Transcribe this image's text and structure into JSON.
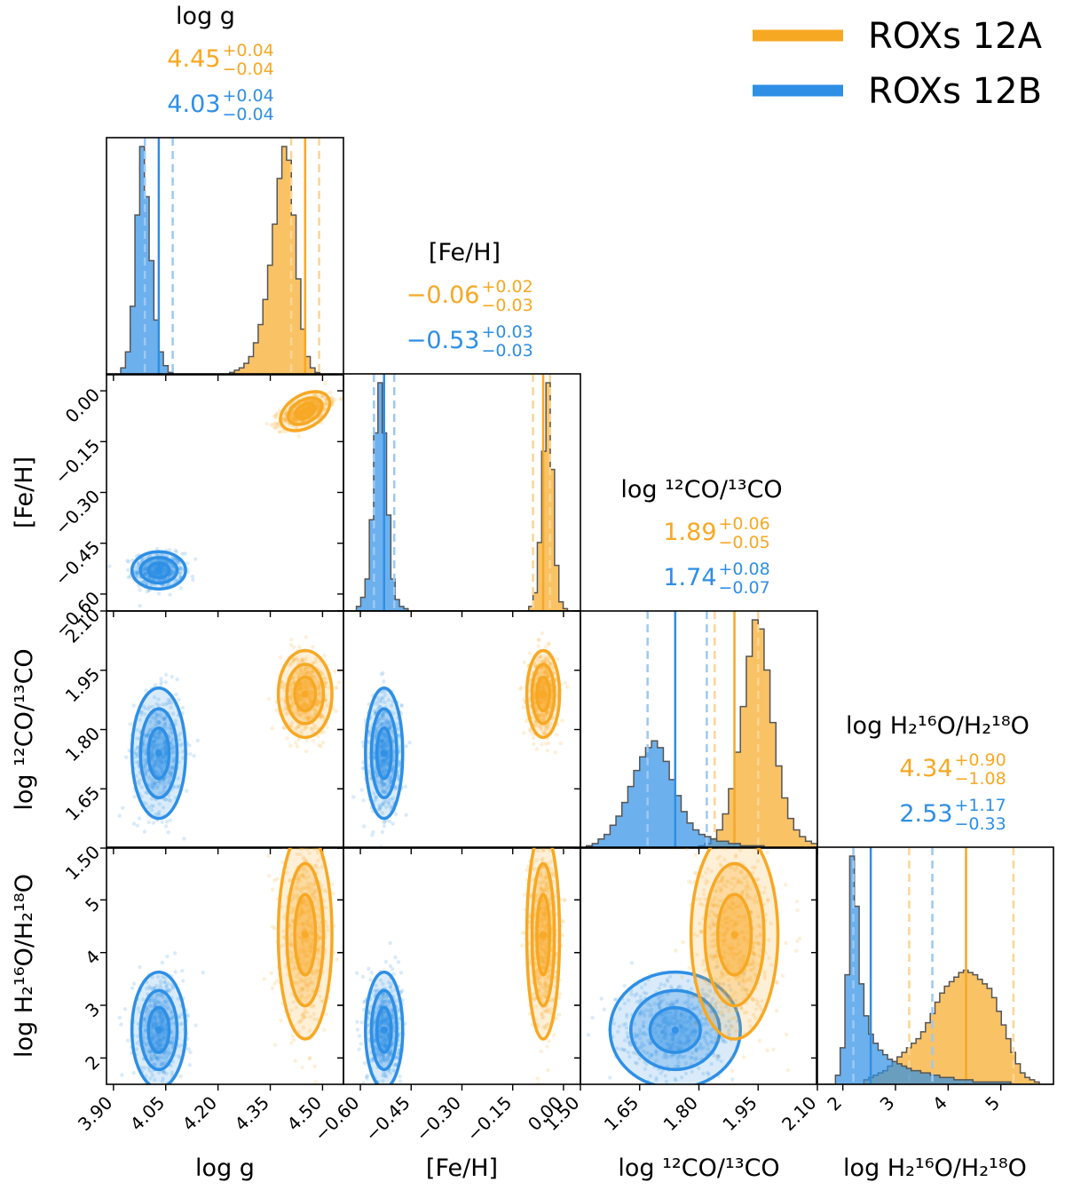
{
  "chart_data": {
    "type": "corner",
    "legend": {
      "position": "top-right",
      "entries": [
        {
          "label": "ROXs 12A",
          "color": "#f7a823"
        },
        {
          "label": "ROXs 12B",
          "color": "#2e8fe5"
        }
      ]
    },
    "colors": {
      "A": "#f7a823",
      "B": "#2e8fe5",
      "A_light": "#fbd595",
      "B_light": "#9cc9f3",
      "edge": "#555555"
    },
    "parameters": [
      {
        "key": "logg",
        "label": "log g",
        "range": [
          3.88,
          4.56
        ],
        "ticks": [
          3.9,
          4.05,
          4.2,
          4.35,
          4.5
        ],
        "tick_labels": [
          "3.90",
          "4.05",
          "4.20",
          "4.35",
          "4.50"
        ],
        "title": "log g",
        "A": {
          "median": "4.45",
          "plus": "+0.04",
          "minus": "−0.04",
          "value": 4.45,
          "lo": 4.41,
          "hi": 4.49,
          "sd": 0.035
        },
        "B": {
          "median": "4.03",
          "plus": "+0.04",
          "minus": "−0.04",
          "value": 4.03,
          "lo": 3.99,
          "hi": 4.07,
          "sd": 0.035
        }
      },
      {
        "key": "feh",
        "label": "[Fe/H]",
        "range": [
          -0.65,
          0.05
        ],
        "ticks": [
          -0.6,
          -0.45,
          -0.3,
          -0.15,
          0.0
        ],
        "tick_labels": [
          "−0.60",
          "−0.45",
          "−0.30",
          "−0.15",
          "0.00"
        ],
        "title": "[Fe/H]",
        "A": {
          "median": "−0.06",
          "plus": "+0.02",
          "minus": "−0.03",
          "value": -0.06,
          "lo": -0.09,
          "hi": -0.04,
          "sd": 0.022
        },
        "B": {
          "median": "−0.53",
          "plus": "+0.03",
          "minus": "−0.03",
          "value": -0.53,
          "lo": -0.56,
          "hi": -0.5,
          "sd": 0.025
        }
      },
      {
        "key": "co",
        "label": "log ¹²CO/¹³CO",
        "range": [
          1.5,
          2.1
        ],
        "ticks": [
          1.5,
          1.65,
          1.8,
          1.95,
          2.1
        ],
        "tick_labels": [
          "1.50",
          "1.65",
          "1.80",
          "1.95",
          "2.10"
        ],
        "title": "log ¹²CO/¹³CO",
        "A": {
          "median": "1.89",
          "plus": "+0.06",
          "minus": "−0.05",
          "value": 1.89,
          "lo": 1.84,
          "hi": 1.95,
          "sd": 0.05
        },
        "B": {
          "median": "1.74",
          "plus": "+0.08",
          "minus": "−0.07",
          "value": 1.74,
          "lo": 1.67,
          "hi": 1.82,
          "sd": 0.075
        }
      },
      {
        "key": "h2o",
        "label": "log H₂¹⁶O/H₂¹⁸O",
        "range": [
          1.5,
          6.0
        ],
        "ticks": [
          2,
          3,
          4,
          5
        ],
        "tick_labels": [
          "2",
          "3",
          "4",
          "5"
        ],
        "title": "log H₂¹⁶O/H₂¹⁸O",
        "A": {
          "median": "4.34",
          "plus": "+0.90",
          "minus": "−1.08",
          "value": 4.34,
          "lo": 3.26,
          "hi": 5.24,
          "sd": 0.9
        },
        "B": {
          "median": "2.53",
          "plus": "+1.17",
          "minus": "−0.33",
          "value": 2.53,
          "lo": 2.2,
          "hi": 3.7,
          "sd": 0.5
        }
      }
    ],
    "axis_titles": {
      "x": [
        "log g",
        "[Fe/H]",
        "log ¹²CO/¹³CO",
        "log H₂¹⁶O/H₂¹⁸O"
      ],
      "y": [
        "[Fe/H]",
        "log ¹²CO/¹³CO",
        "log H₂¹⁶O/H₂¹⁸O"
      ]
    },
    "hist_A": {
      "logg": [
        0,
        0,
        0,
        0,
        0,
        0,
        0,
        0,
        0,
        0,
        0,
        0,
        0,
        0,
        0,
        0,
        0,
        0,
        0,
        0,
        0,
        0,
        0,
        0,
        0,
        0,
        1,
        2,
        3,
        5,
        8,
        14,
        22,
        33,
        48,
        66,
        86,
        100,
        94,
        70,
        42,
        20,
        8,
        3,
        1,
        0,
        0,
        0,
        0,
        0
      ],
      "feh": [
        0,
        0,
        0,
        0,
        0,
        0,
        0,
        0,
        0,
        0,
        0,
        0,
        0,
        0,
        0,
        0,
        0,
        0,
        0,
        0,
        0,
        0,
        0,
        0,
        0,
        0,
        0,
        0,
        0,
        0,
        0,
        0,
        0,
        0,
        0,
        0,
        0,
        0,
        0,
        0,
        0,
        0,
        0,
        2,
        8,
        30,
        70,
        100,
        62,
        20,
        4,
        1,
        0,
        0,
        0
      ],
      "co": [
        0,
        0,
        0,
        0,
        0,
        0,
        0,
        0,
        0,
        0,
        0,
        0,
        0,
        0,
        0,
        0,
        0,
        0,
        0,
        0,
        1,
        2,
        4,
        8,
        15,
        26,
        42,
        62,
        84,
        100,
        96,
        78,
        55,
        36,
        22,
        13,
        8,
        5,
        3,
        2
      ],
      "h2o": [
        0,
        0,
        0,
        0,
        0,
        0,
        0,
        0,
        0,
        0,
        2,
        3,
        4,
        5,
        6,
        8,
        10,
        12,
        14,
        16,
        18,
        20,
        23,
        27,
        31,
        36,
        40,
        43,
        45,
        47,
        49,
        50,
        49,
        48,
        46,
        44,
        42,
        38,
        32,
        26,
        20,
        14,
        9,
        5,
        3,
        2,
        1,
        0,
        0,
        0
      ]
    },
    "hist_B": {
      "logg": [
        0,
        0,
        0,
        3,
        10,
        30,
        70,
        100,
        78,
        50,
        24,
        10,
        4,
        1,
        0,
        0,
        0,
        0,
        0,
        0,
        0,
        0,
        0,
        0,
        0,
        0,
        0,
        0,
        0,
        0,
        0,
        0,
        0,
        0,
        0,
        0,
        0,
        0,
        0,
        0,
        0,
        0,
        0,
        0,
        0,
        0,
        0,
        0,
        0,
        0
      ],
      "feh": [
        0,
        0,
        0,
        2,
        6,
        14,
        40,
        78,
        100,
        78,
        42,
        14,
        5,
        2,
        1,
        0,
        0,
        0,
        0,
        0,
        0,
        0,
        0,
        0,
        0,
        0,
        0,
        0,
        0,
        0,
        0,
        0,
        0,
        0,
        0,
        0,
        0,
        0,
        0,
        0,
        0,
        0,
        0,
        0,
        0,
        0,
        0,
        0,
        0,
        0,
        0,
        0,
        0,
        0,
        0
      ],
      "co": [
        0,
        1,
        2,
        4,
        6,
        10,
        14,
        20,
        27,
        34,
        40,
        44,
        47,
        44,
        38,
        30,
        23,
        16,
        11,
        8,
        6,
        5,
        4,
        3,
        3,
        2,
        2,
        1,
        1,
        1,
        1,
        0,
        0,
        0,
        0,
        0,
        0,
        0,
        0,
        0
      ],
      "h2o": [
        0,
        0,
        0,
        0,
        4,
        16,
        48,
        100,
        78,
        44,
        30,
        22,
        18,
        15,
        13,
        11,
        10,
        9,
        8,
        7,
        6,
        6,
        5,
        5,
        4,
        4,
        3,
        3,
        3,
        2,
        2,
        2,
        2,
        1,
        1,
        1,
        1,
        1,
        1,
        1,
        1,
        0,
        0,
        0,
        0,
        0,
        0,
        0,
        0,
        0
      ]
    }
  }
}
